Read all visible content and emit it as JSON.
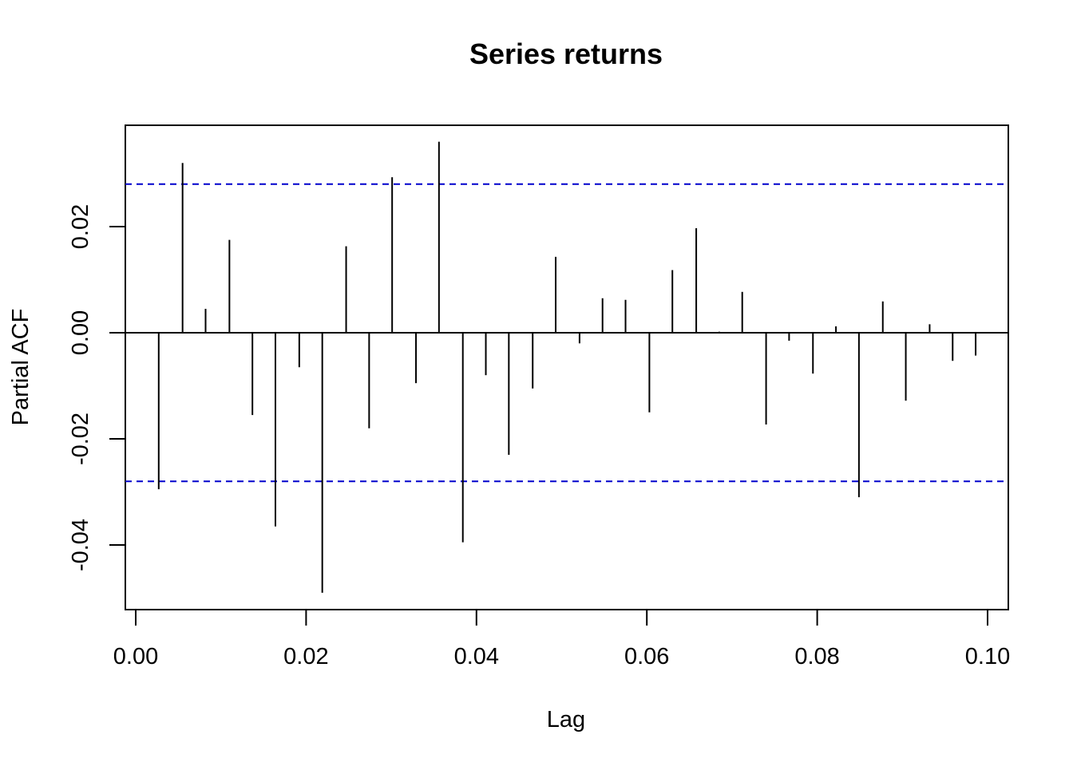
{
  "chart_data": {
    "type": "bar",
    "title": "Series  returns",
    "xlabel": "Lag",
    "ylabel": "Partial ACF",
    "xlim": [
      0.0,
      0.1
    ],
    "ylim": [
      -0.05,
      0.036
    ],
    "x_ticks": [
      "0.00",
      "0.02",
      "0.04",
      "0.06",
      "0.08",
      "0.10"
    ],
    "y_ticks": [
      "-0.04",
      "-0.02",
      "0.00",
      "0.02"
    ],
    "confidence_limits": [
      0.028,
      -0.028
    ],
    "confidence_color": "#0000cc",
    "grid": false,
    "lags": [
      0.0027,
      0.0055,
      0.0082,
      0.011,
      0.0137,
      0.0164,
      0.0192,
      0.0219,
      0.0247,
      0.0274,
      0.0301,
      0.0329,
      0.0356,
      0.0384,
      0.0411,
      0.0438,
      0.0466,
      0.0493,
      0.0521,
      0.0548,
      0.0575,
      0.0603,
      0.063,
      0.0658,
      0.0685,
      0.0712,
      0.074,
      0.0767,
      0.0795,
      0.0822,
      0.0849,
      0.0877,
      0.0904,
      0.0932,
      0.0959,
      0.0986
    ],
    "values": [
      -0.0295,
      0.032,
      0.0045,
      0.0175,
      -0.0155,
      -0.0365,
      -0.0065,
      -0.049,
      0.0163,
      -0.018,
      0.0293,
      -0.0095,
      0.036,
      -0.0395,
      -0.008,
      -0.023,
      -0.0105,
      0.0143,
      -0.002,
      0.0065,
      0.0062,
      -0.015,
      0.0118,
      0.0197,
      0.0002,
      0.0077,
      -0.0173,
      -0.0015,
      -0.0077,
      0.0012,
      -0.031,
      0.0059,
      -0.0128,
      0.0016,
      -0.0053,
      -0.0043
    ]
  }
}
